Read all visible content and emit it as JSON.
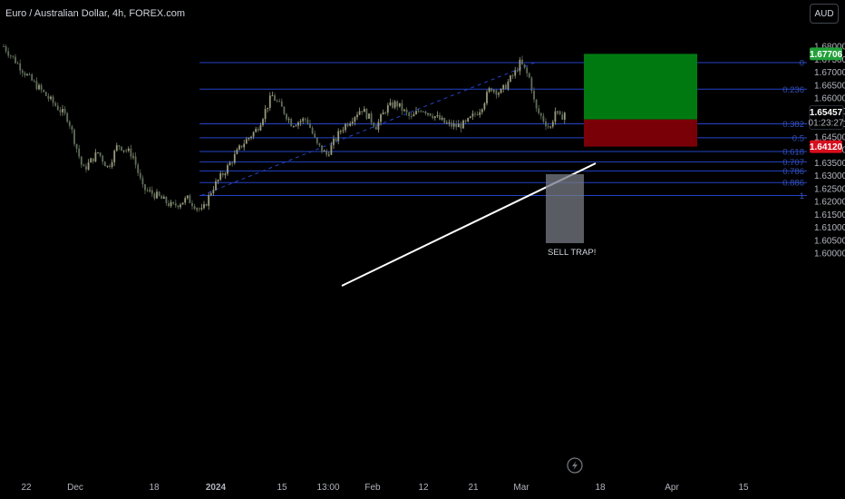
{
  "header": {
    "title": "Euro / Australian Dollar, 4h, FOREX.com",
    "currency": "AUD"
  },
  "colors": {
    "background": "#000000",
    "fib_line": "#2443c8",
    "candle_up": "#9a9a7c",
    "candle_down": "#5f6e5a",
    "profit_zone": "#007a10",
    "loss_zone": "#7a0008",
    "trendline": "#ffffff",
    "target_badge": "#21a038",
    "stop_badge": "#d80f1e",
    "current_badge": "#000000"
  },
  "icons": {
    "replay": "lightning-icon"
  },
  "chart_data": {
    "type": "candlestick",
    "symbol": "EURAUD",
    "timeframe": "4h",
    "source": "FOREX.com",
    "y_axis": {
      "range": [
        1.5955,
        1.6838
      ],
      "ticks": [
        "1.68000",
        "1.67500",
        "1.67000",
        "1.66500",
        "1.66000",
        "1.65500",
        "1.65000",
        "1.64500",
        "1.64000",
        "1.63500",
        "1.63000",
        "1.62500",
        "1.62000",
        "1.61500",
        "1.61000",
        "1.60500",
        "1.60000"
      ]
    },
    "x_axis": {
      "ticks": [
        "22",
        "Dec",
        "18",
        "2024",
        "15",
        "13:00",
        "Feb",
        "12",
        "21",
        "Mar",
        "18",
        "Apr",
        "15"
      ]
    },
    "price_path": [
      {
        "x": "Nov 22",
        "y": 1.68
      },
      {
        "x": "Nov 27",
        "y": 1.668
      },
      {
        "x": "Dec 1",
        "y": 1.66
      },
      {
        "x": "Dec 5",
        "y": 1.652
      },
      {
        "x": "Dec 8",
        "y": 1.632
      },
      {
        "x": "Dec 11",
        "y": 1.639
      },
      {
        "x": "Dec 13",
        "y": 1.633
      },
      {
        "x": "Dec 15",
        "y": 1.642
      },
      {
        "x": "Dec 18",
        "y": 1.638
      },
      {
        "x": "Dec 20",
        "y": 1.625
      },
      {
        "x": "Dec 23",
        "y": 1.622
      },
      {
        "x": "Dec 26",
        "y": 1.618
      },
      {
        "x": "Dec 29",
        "y": 1.621
      },
      {
        "x": "Jan 1",
        "y": 1.616
      },
      {
        "x": "Jan 3",
        "y": 1.625
      },
      {
        "x": "Jan 6",
        "y": 1.633
      },
      {
        "x": "Jan 9",
        "y": 1.642
      },
      {
        "x": "Jan 12",
        "y": 1.648
      },
      {
        "x": "Jan 15",
        "y": 1.661
      },
      {
        "x": "Jan 17",
        "y": 1.656
      },
      {
        "x": "Jan 19",
        "y": 1.65
      },
      {
        "x": "Jan 22",
        "y": 1.652
      },
      {
        "x": "Jan 24",
        "y": 1.642
      },
      {
        "x": "Jan 26",
        "y": 1.638
      },
      {
        "x": "Jan 29",
        "y": 1.648
      },
      {
        "x": "Jan 31",
        "y": 1.652
      },
      {
        "x": "Feb 2",
        "y": 1.656
      },
      {
        "x": "Feb 5",
        "y": 1.649
      },
      {
        "x": "Feb 7",
        "y": 1.656
      },
      {
        "x": "Feb 9",
        "y": 1.658
      },
      {
        "x": "Feb 12",
        "y": 1.652
      },
      {
        "x": "Feb 14",
        "y": 1.656
      },
      {
        "x": "Feb 16",
        "y": 1.654
      },
      {
        "x": "Feb 19",
        "y": 1.65
      },
      {
        "x": "Feb 21",
        "y": 1.649
      },
      {
        "x": "Feb 23",
        "y": 1.65
      },
      {
        "x": "Feb 26",
        "y": 1.656
      },
      {
        "x": "Feb 28",
        "y": 1.664
      },
      {
        "x": "Mar 1",
        "y": 1.662
      },
      {
        "x": "Mar 4",
        "y": 1.67
      },
      {
        "x": "Mar 5",
        "y": 1.6738
      },
      {
        "x": "Mar 7",
        "y": 1.667
      },
      {
        "x": "Mar 8",
        "y": 1.656
      },
      {
        "x": "Mar 11",
        "y": 1.648
      },
      {
        "x": "Mar 12",
        "y": 1.655
      },
      {
        "x": "Mar 13",
        "y": 1.652
      },
      {
        "x": "Mar 14",
        "y": 1.6546
      }
    ],
    "fibonacci": {
      "levels": [
        {
          "label": "0",
          "price": 1.6737
        },
        {
          "label": "0.236",
          "price": 1.6634
        },
        {
          "label": "0.382",
          "price": 1.65
        },
        {
          "label": "0.5",
          "price": 1.6446
        },
        {
          "label": "0.618",
          "price": 1.6393
        },
        {
          "label": "0.707",
          "price": 1.6353
        },
        {
          "label": "0.786",
          "price": 1.6318
        },
        {
          "label": "0.886",
          "price": 1.6273
        },
        {
          "label": "1",
          "price": 1.6223
        }
      ]
    },
    "position": {
      "side": "long",
      "target": "1.67706",
      "stop": "1.64120",
      "current_price": "1.65457",
      "countdown": "01:23:27"
    },
    "annotations": [
      {
        "text": "SELL TRAP!"
      }
    ]
  }
}
